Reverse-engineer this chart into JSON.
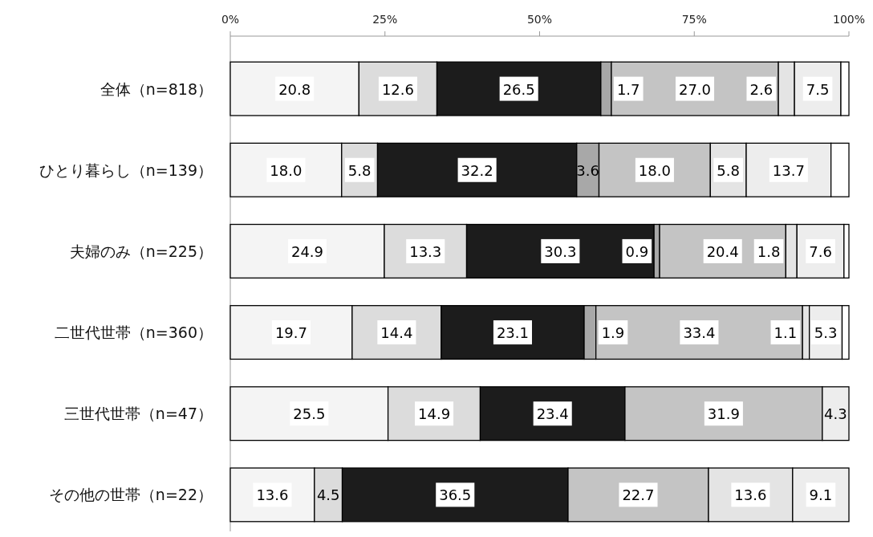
{
  "chart_data": {
    "type": "bar",
    "orientation": "horizontal",
    "stacked": true,
    "categories": [
      "全体（n=818）",
      "ひとり暮らし（n=139）",
      "夫婦のみ（n=225）",
      "二世代世帯（n=360）",
      "三世代世帯（n=47）",
      "その他の世帯（n=22）"
    ],
    "xlim": [
      0,
      100
    ],
    "xticks": [
      {
        "value": 0,
        "label": "0%"
      },
      {
        "value": 25,
        "label": "25%"
      },
      {
        "value": 50,
        "label": "50%"
      },
      {
        "value": 75,
        "label": "75%"
      },
      {
        "value": 100,
        "label": "100%"
      }
    ],
    "series": [
      {
        "color": "#f4f4f4",
        "values": [
          20.8,
          18.0,
          24.9,
          19.7,
          25.5,
          13.6
        ],
        "value_labels": [
          "20.8",
          "18.0",
          "24.9",
          "19.7",
          "25.5",
          "13.6"
        ]
      },
      {
        "color": "#dcdcdc",
        "values": [
          12.6,
          5.8,
          13.3,
          14.4,
          14.9,
          4.5
        ],
        "value_labels": [
          "12.6",
          "5.8",
          "13.3",
          "14.4",
          "14.9",
          "4.5"
        ]
      },
      {
        "color": "#1c1c1c",
        "values": [
          26.5,
          32.2,
          30.3,
          23.1,
          23.4,
          36.5
        ],
        "value_labels": [
          "26.5",
          "32.2",
          "30.3",
          "23.1",
          "23.4",
          "36.5"
        ]
      },
      {
        "color": "#a8a8a8",
        "values": [
          1.7,
          3.6,
          0.9,
          1.9,
          0,
          0
        ],
        "value_labels": [
          "1.7",
          "3.6",
          "0.9",
          "1.9",
          null,
          null
        ]
      },
      {
        "color": "#c4c4c4",
        "values": [
          27.0,
          18.0,
          20.4,
          33.4,
          31.9,
          22.7
        ],
        "value_labels": [
          "27.0",
          "18.0",
          "20.4",
          "33.4",
          "31.9",
          "22.7"
        ]
      },
      {
        "color": "#e4e4e4",
        "values": [
          2.6,
          5.8,
          1.8,
          1.1,
          0,
          13.6
        ],
        "value_labels": [
          "2.6",
          "5.8",
          "1.8",
          "1.1",
          null,
          "13.6"
        ]
      },
      {
        "color": "#ededed",
        "values": [
          7.5,
          13.7,
          7.6,
          5.3,
          4.3,
          9.1
        ],
        "value_labels": [
          "7.5",
          "13.7",
          "7.6",
          "5.3",
          "4.3",
          "9.1"
        ]
      },
      {
        "color": "#ffffff",
        "values": [
          1.3,
          2.9,
          0.8,
          1.1,
          0,
          0
        ],
        "value_labels": [
          null,
          null,
          null,
          null,
          null,
          null
        ]
      }
    ]
  }
}
